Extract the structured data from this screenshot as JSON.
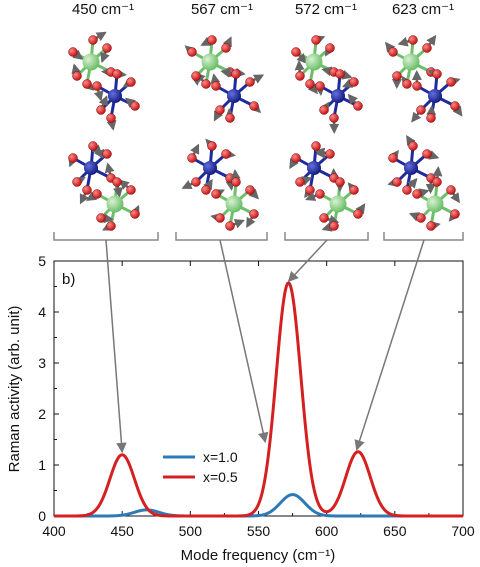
{
  "figure": {
    "modes": [
      {
        "label": "450 cm⁻¹",
        "freq": 450
      },
      {
        "label": "567 cm⁻¹",
        "freq": 567
      },
      {
        "label": "572 cm⁻¹",
        "freq": 572
      },
      {
        "label": "623 cm⁻¹",
        "freq": 623
      }
    ],
    "colors": {
      "octahedron_center_green": "#7fc97f",
      "octahedron_center_blue": "#1f2a9e",
      "oxygen_red": "#d42020",
      "displacement_arrow": "#777777",
      "connector_gray": "#777777"
    }
  },
  "chart_data": {
    "type": "line",
    "panel_label": "b)",
    "xlabel": "Mode frequency (cm⁻¹)",
    "ylabel": "Raman activity (arb. unit)",
    "xlim": [
      400,
      700
    ],
    "ylim": [
      0,
      5
    ],
    "xticks": [
      400,
      450,
      500,
      550,
      600,
      650,
      700
    ],
    "yticks": [
      0,
      1,
      2,
      3,
      4,
      5
    ],
    "grid": false,
    "legend_position": "center-left",
    "series": [
      {
        "name": "x=1.0",
        "color": "#2e7ab8",
        "peaks": [
          {
            "center": 468,
            "height": 0.12,
            "width": 9
          },
          {
            "center": 575,
            "height": 0.42,
            "width": 9
          }
        ]
      },
      {
        "name": "x=0.5",
        "color": "#d42020",
        "peaks": [
          {
            "center": 450,
            "height": 1.2,
            "width": 9
          },
          {
            "center": 572,
            "height": 4.57,
            "width": 9
          },
          {
            "center": 623,
            "height": 1.26,
            "width": 9
          }
        ]
      }
    ],
    "annotations": [
      {
        "from_mode": 0,
        "to_x": 450,
        "to_y": 1.25
      },
      {
        "from_mode": 1,
        "to_x": 555,
        "to_y": 1.45
      },
      {
        "from_mode": 2,
        "to_x": 572,
        "to_y": 4.6
      },
      {
        "from_mode": 3,
        "to_x": 622,
        "to_y": 1.3
      }
    ]
  }
}
